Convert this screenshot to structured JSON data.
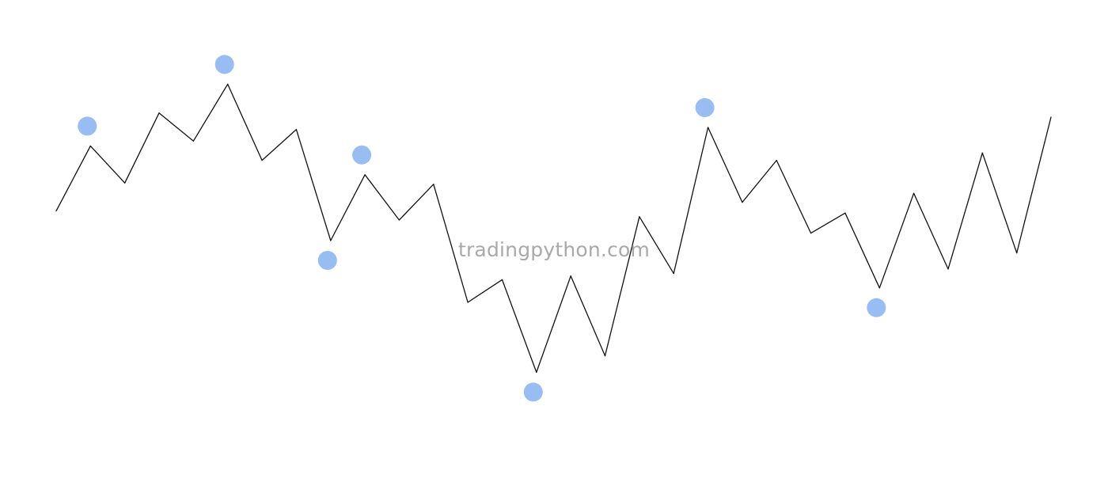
{
  "chart_data": {
    "type": "line",
    "title": "",
    "xlabel": "",
    "ylabel": "",
    "grid": false,
    "legend": "none",
    "axes_visible": false,
    "line_color": "#111111",
    "marker_color": "#97bdf3",
    "x": [
      0,
      1,
      2,
      3,
      4,
      5,
      6,
      7,
      8,
      9,
      10,
      11,
      12,
      13,
      14,
      15,
      16,
      17,
      18,
      19,
      20,
      21,
      22,
      23,
      24,
      25,
      26,
      27,
      28,
      29
    ],
    "y": [
      57.2,
      73.0,
      64.0,
      81.0,
      74.2,
      88.0,
      69.5,
      77.0,
      50.0,
      66.0,
      55.0,
      63.7,
      35.0,
      40.5,
      18.0,
      41.4,
      22.0,
      55.8,
      42.0,
      77.5,
      59.3,
      69.5,
      51.8,
      56.7,
      38.5,
      61.5,
      43.1,
      71.3,
      47.0,
      80.0
    ],
    "pivots": [
      {
        "index": 1,
        "kind": "high"
      },
      {
        "index": 5,
        "kind": "high"
      },
      {
        "index": 8,
        "kind": "low"
      },
      {
        "index": 9,
        "kind": "high"
      },
      {
        "index": 14,
        "kind": "low"
      },
      {
        "index": 19,
        "kind": "high"
      },
      {
        "index": 24,
        "kind": "low"
      }
    ]
  },
  "watermark": {
    "text": "tradingpython.com",
    "color": "#a9a9a9"
  }
}
